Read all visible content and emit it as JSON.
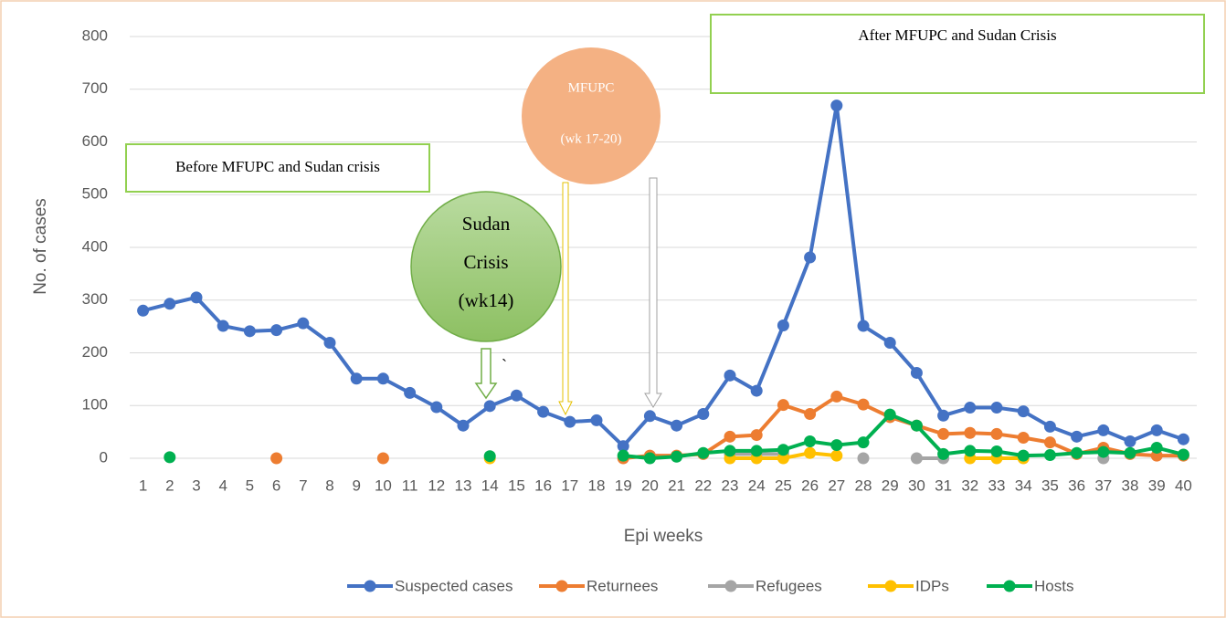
{
  "chart_data": {
    "type": "line",
    "x_label": "Epi weeks",
    "y_label": "No. of cases",
    "categories": [
      "1",
      "2",
      "3",
      "4",
      "5",
      "6",
      "7",
      "8",
      "9",
      "10",
      "11",
      "12",
      "13",
      "14",
      "15",
      "16",
      "17",
      "18",
      "19",
      "20",
      "21",
      "22",
      "23",
      "24",
      "25",
      "26",
      "27",
      "28",
      "29",
      "30",
      "31",
      "32",
      "33",
      "34",
      "35",
      "36",
      "37",
      "38",
      "39",
      "40"
    ],
    "ylim": [
      0,
      800
    ],
    "yticks": [
      0,
      100,
      200,
      300,
      400,
      500,
      600,
      700,
      800
    ],
    "grid": true,
    "legend": "bottom",
    "series": [
      {
        "name": "Suspected cases",
        "color": "#4472c4",
        "values": [
          280,
          293,
          305,
          251,
          241,
          243,
          256,
          219,
          151,
          151,
          124,
          97,
          62,
          99,
          119,
          88,
          69,
          72,
          23,
          80,
          62,
          84,
          157,
          128,
          252,
          381,
          669,
          251,
          219,
          162,
          81,
          96,
          96,
          89,
          60,
          41,
          53,
          32,
          53,
          36
        ]
      },
      {
        "name": "Returnees",
        "color": "#ed7d31",
        "values": [
          null,
          null,
          null,
          null,
          null,
          0,
          null,
          null,
          null,
          0,
          null,
          null,
          null,
          null,
          null,
          null,
          null,
          null,
          0,
          5,
          5,
          8,
          41,
          44,
          101,
          84,
          117,
          102,
          78,
          62,
          46,
          48,
          46,
          39,
          30,
          8,
          20,
          8,
          5,
          5
        ]
      },
      {
        "name": "Refugees",
        "color": "#a5a5a5",
        "values": [
          null,
          null,
          null,
          null,
          null,
          null,
          null,
          null,
          null,
          null,
          null,
          null,
          null,
          null,
          null,
          null,
          null,
          null,
          null,
          null,
          null,
          null,
          8,
          8,
          8,
          null,
          null,
          0,
          null,
          0,
          0,
          null,
          null,
          null,
          null,
          null,
          0,
          null,
          null,
          null
        ]
      },
      {
        "name": "IDPs",
        "color": "#ffc000",
        "values": [
          null,
          null,
          null,
          null,
          null,
          null,
          null,
          null,
          null,
          null,
          null,
          null,
          null,
          0,
          null,
          null,
          null,
          null,
          null,
          null,
          null,
          null,
          0,
          0,
          0,
          10,
          5,
          null,
          null,
          null,
          null,
          0,
          0,
          0,
          null,
          null,
          null,
          null,
          null,
          null
        ]
      },
      {
        "name": "Hosts",
        "color": "#00b050",
        "values": [
          null,
          2,
          null,
          null,
          null,
          null,
          null,
          null,
          null,
          null,
          null,
          null,
          null,
          4,
          null,
          null,
          null,
          null,
          5,
          0,
          3,
          10,
          14,
          14,
          16,
          32,
          25,
          30,
          83,
          62,
          8,
          14,
          13,
          5,
          6,
          10,
          12,
          10,
          20,
          7
        ]
      }
    ],
    "annotations": [
      {
        "lines": [
          "Before MFUPC and Sudan crisis"
        ]
      },
      {
        "lines": [
          "After MFUPC and Sudan Crisis"
        ]
      },
      {
        "lines": [
          "Sudan",
          "Crisis",
          "(wk14)"
        ]
      },
      {
        "lines": [
          "MFUPC",
          "(wk 17-20)"
        ]
      },
      {
        "lines": [
          "`"
        ]
      }
    ]
  }
}
